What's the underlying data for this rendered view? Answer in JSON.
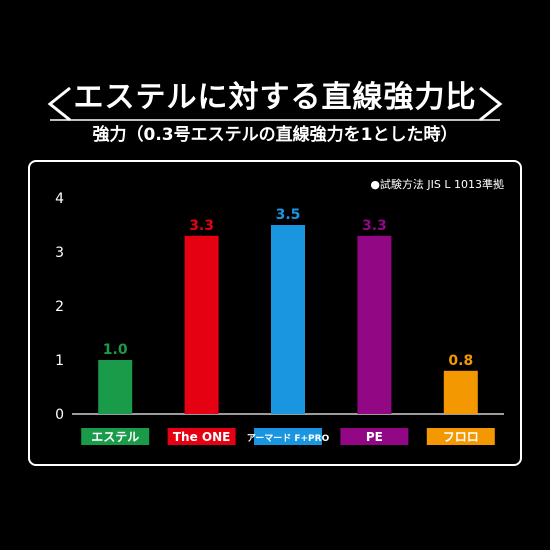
{
  "header": {
    "title": "エステルに対する直線強力比",
    "subtitle": "強力（0.3号エステルの直線強力を1とした時）"
  },
  "note": "●試験方法 JIS L 1013準拠",
  "chart_data": {
    "type": "bar",
    "title": "エステルに対する直線強力比",
    "subtitle": "強力（0.3号エステルの直線強力を1とした時）",
    "categories": [
      "エステル",
      "The ONE",
      "アーマード F+PRO",
      "PE",
      "フロロ"
    ],
    "values": [
      1.0,
      3.3,
      3.5,
      3.3,
      0.8
    ],
    "value_labels": [
      "1.0",
      "3.3",
      "3.5",
      "3.3",
      "0.8"
    ],
    "colors": [
      "#1a9b4a",
      "#e50012",
      "#1a96e0",
      "#920783",
      "#f39800"
    ],
    "yticks": [
      0,
      1,
      2,
      3,
      4
    ],
    "ylim": [
      0,
      4
    ],
    "xlabel": "",
    "ylabel": "",
    "grid": false,
    "legend": "none"
  }
}
